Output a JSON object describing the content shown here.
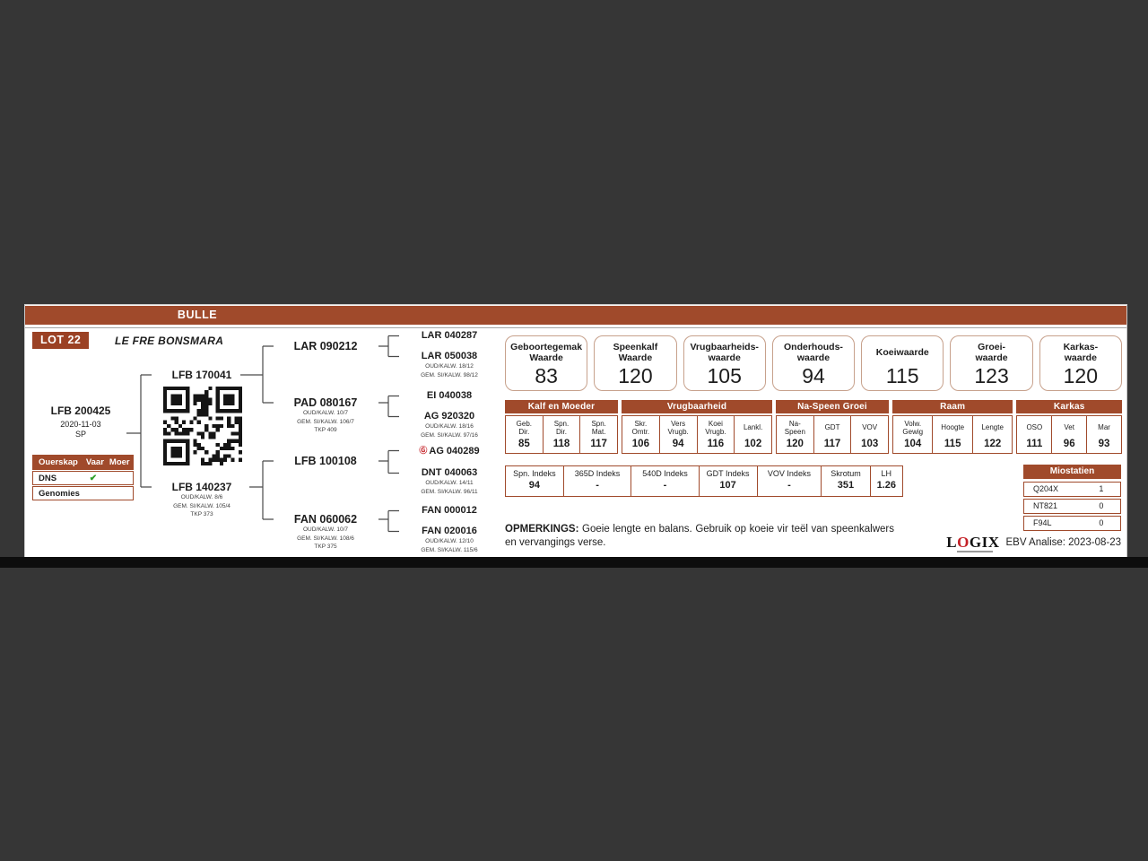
{
  "banner": {
    "title": "BULLE"
  },
  "lot": {
    "badge": "LOT 22",
    "stud": "LE FRE BONSMARA"
  },
  "icons": {
    "brand_g": "Ⓖ",
    "check": "✔"
  },
  "pedigree": {
    "subject": {
      "id": "LFB 200425",
      "dob": "2020-11-03",
      "code": "SP"
    },
    "sire": {
      "id": "LFB 170041"
    },
    "dam": {
      "id": "LFB 140237",
      "l1": "OUD/KALW. 8/6",
      "l2": "GEM. SI/KALW. 105/4",
      "l3": "TKP 373"
    },
    "g3": [
      {
        "id": "LAR 090212"
      },
      {
        "id": "PAD 080167",
        "l1": "OUD/KALW. 10/7",
        "l2": "GEM. SI/KALW. 106/7",
        "l3": "TKP 409"
      },
      {
        "id": "LFB 100108"
      },
      {
        "id": "FAN 060062",
        "l1": "OUD/KALW. 10/7",
        "l2": "GEM. SI/KALW. 108/6",
        "l3": "TKP 375"
      }
    ],
    "g4": [
      {
        "id": "LAR 040287"
      },
      {
        "id": "LAR 050038",
        "l1": "OUD/KALW. 18/12",
        "l2": "GEM. SI/KALW. 98/12"
      },
      {
        "id": "EI 040038"
      },
      {
        "id": "AG 920320",
        "l1": "OUD/KALW. 18/16",
        "l2": "GEM. SI/KALW. 97/16"
      },
      {
        "id": "AG 040289"
      },
      {
        "id": "DNT 040063",
        "l1": "OUD/KALW. 14/11",
        "l2": "GEM. SI/KALW. 96/11"
      },
      {
        "id": "FAN 000012"
      },
      {
        "id": "FAN 020016",
        "l1": "OUD/KALW. 12/10",
        "l2": "GEM. SI/KALW. 115/6"
      }
    ]
  },
  "parentage": {
    "title": "Ouerskap",
    "col_sire": "Vaar",
    "col_dam": "Moer",
    "rows": [
      {
        "label": "DNS",
        "sire": "✔",
        "dam": ""
      },
      {
        "label": "Genomies",
        "sire": "",
        "dam": ""
      }
    ]
  },
  "value_boxes": [
    {
      "label": "Geboortegemak\nWaarde",
      "value": "83"
    },
    {
      "label": "Speenkalf\nWaarde",
      "value": "120"
    },
    {
      "label": "Vrugbaarheids-\nwaarde",
      "value": "105"
    },
    {
      "label": "Onderhouds-\nwaarde",
      "value": "94"
    },
    {
      "label": "Koeiwaarde",
      "value": "115"
    },
    {
      "label": "Groei-\nwaarde",
      "value": "123"
    },
    {
      "label": "Karkas-\nwaarde",
      "value": "120"
    }
  ],
  "ebv_table": {
    "groups": [
      {
        "name": "Kalf en Moeder",
        "cols": [
          {
            "label": "Geb.\nDir.",
            "value": "85"
          },
          {
            "label": "Spn.\nDir.",
            "value": "118"
          },
          {
            "label": "Spn.\nMat.",
            "value": "117"
          }
        ]
      },
      {
        "name": "Vrugbaarheid",
        "cols": [
          {
            "label": "Skr.\nOmtr.",
            "value": "106"
          },
          {
            "label": "Vers\nVrugb.",
            "value": "94"
          },
          {
            "label": "Koei\nVrugb.",
            "value": "116"
          },
          {
            "label": "Lankl.",
            "value": "102"
          }
        ]
      },
      {
        "name": "Na-Speen Groei",
        "cols": [
          {
            "label": "Na-\nSpeen",
            "value": "120"
          },
          {
            "label": "GDT",
            "value": "117"
          },
          {
            "label": "VOV",
            "value": "103"
          }
        ]
      },
      {
        "name": "Raam",
        "cols": [
          {
            "label": "Volw.\nGewig",
            "value": "104"
          },
          {
            "label": "Hoogte",
            "value": "115"
          },
          {
            "label": "Lengte",
            "value": "122"
          }
        ]
      },
      {
        "name": "Karkas",
        "cols": [
          {
            "label": "OSO",
            "value": "111"
          },
          {
            "label": "Vet",
            "value": "96"
          },
          {
            "label": "Mar",
            "value": "93"
          }
        ]
      }
    ]
  },
  "index_table": [
    {
      "label": "Spn. Indeks",
      "value": "94"
    },
    {
      "label": "365D Indeks",
      "value": "-"
    },
    {
      "label": "540D Indeks",
      "value": "-"
    },
    {
      "label": "GDT Indeks",
      "value": "107"
    },
    {
      "label": "VOV Indeks",
      "value": "-"
    },
    {
      "label": "Skrotum",
      "value": "351"
    },
    {
      "label": "LH",
      "value": "1.26"
    }
  ],
  "myostatin": {
    "title": "Miostatien",
    "rows": [
      {
        "gene": "Q204X",
        "value": "1"
      },
      {
        "gene": "NT821",
        "value": "0"
      },
      {
        "gene": "F94L",
        "value": "0"
      }
    ]
  },
  "remarks": {
    "label": "OPMERKINGS:",
    "text": "Goeie lengte en balans. Gebruik op koeie vir teël van speenkalwers en vervangings verse."
  },
  "footer": {
    "logo_pre": "L",
    "logo_o": "O",
    "logo_post": "GIX",
    "analysis": "EBV Analise: 2023-08-23"
  },
  "colors": {
    "brown": "#a04a2b",
    "green_check": "#2e9e28",
    "logo_red": "#c42127"
  }
}
